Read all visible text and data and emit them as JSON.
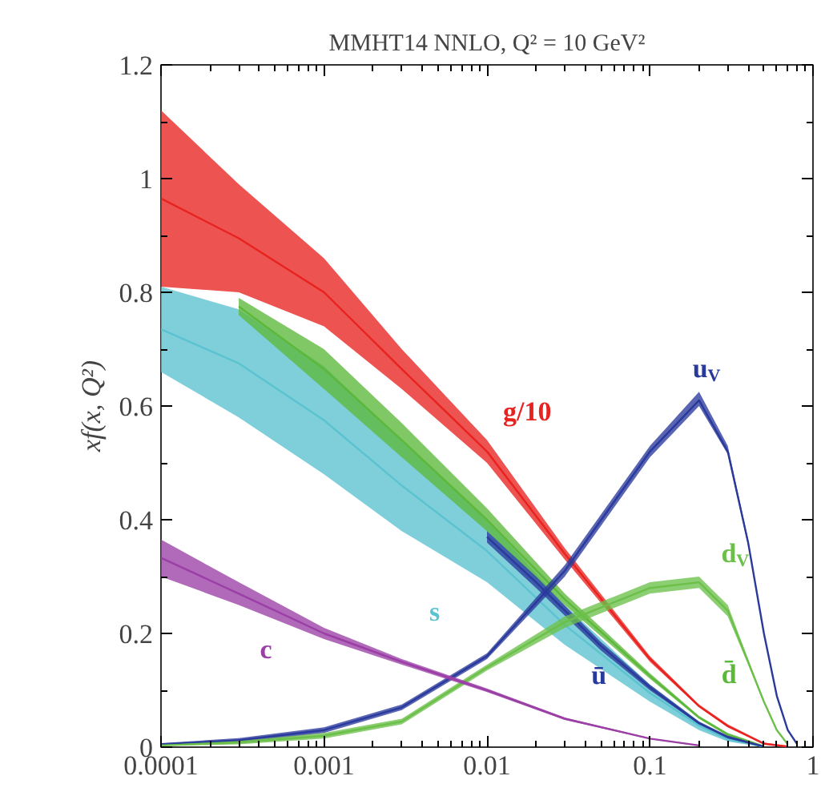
{
  "chart_data": {
    "type": "line",
    "title": "MMHT14 NNLO, Q² = 10 GeV²",
    "ylabel": "xf(x, Q²)",
    "log": "x",
    "grid": false,
    "xlim": [
      0.0001,
      1
    ],
    "xticks": [
      0.0001,
      0.001,
      0.01,
      0.1,
      1
    ],
    "ylim": [
      0,
      1.2
    ],
    "yticks": [
      0,
      0.2,
      0.4,
      0.6,
      0.8,
      1,
      1.2
    ],
    "series": [
      {
        "color": "#e8231f",
        "x": [
          0.0001,
          0.0003,
          0.001,
          0.003,
          0.01,
          0.03,
          0.1,
          0.2,
          0.3,
          0.5,
          0.7
        ],
        "values": [
          0.965,
          0.895,
          0.8,
          0.665,
          0.52,
          0.34,
          0.155,
          0.072,
          0.037,
          0.006,
          0.001
        ],
        "lower": [
          0.81,
          0.8,
          0.74,
          0.63,
          0.5,
          0.33,
          0.15,
          0.07,
          0.035,
          0.005,
          0.0
        ],
        "upper": [
          1.12,
          0.99,
          0.86,
          0.7,
          0.54,
          0.35,
          0.16,
          0.075,
          0.04,
          0.008,
          0.002
        ]
      },
      {
        "color": "#5bc2d0",
        "x": [
          0.0001,
          0.0003,
          0.001,
          0.003,
          0.01,
          0.03,
          0.1,
          0.2,
          0.3,
          0.5
        ],
        "values": [
          0.735,
          0.675,
          0.575,
          0.46,
          0.345,
          0.215,
          0.095,
          0.038,
          0.014,
          0.001
        ],
        "lower": [
          0.66,
          0.58,
          0.48,
          0.38,
          0.29,
          0.18,
          0.08,
          0.03,
          0.01,
          0.0
        ],
        "upper": [
          0.81,
          0.77,
          0.67,
          0.54,
          0.4,
          0.25,
          0.11,
          0.045,
          0.018,
          0.002
        ]
      },
      {
        "color": "#5cb83a",
        "x": [
          0.0003,
          0.001,
          0.003,
          0.01,
          0.03,
          0.1,
          0.2,
          0.3,
          0.5
        ],
        "values": [
          0.775,
          0.665,
          0.54,
          0.4,
          0.26,
          0.125,
          0.052,
          0.022,
          0.001
        ],
        "lower": [
          0.76,
          0.63,
          0.51,
          0.38,
          0.25,
          0.12,
          0.05,
          0.02,
          0.0
        ],
        "upper": [
          0.79,
          0.7,
          0.57,
          0.42,
          0.27,
          0.13,
          0.055,
          0.025,
          0.003
        ]
      },
      {
        "color": "#2a3a9c",
        "x": [
          0.01,
          0.02,
          0.05,
          0.1,
          0.2,
          0.3,
          0.5
        ],
        "values": [
          0.37,
          0.29,
          0.178,
          0.105,
          0.042,
          0.018,
          0.001
        ],
        "lower": [
          0.36,
          0.28,
          0.17,
          0.1,
          0.04,
          0.015,
          0.0
        ],
        "upper": [
          0.38,
          0.3,
          0.185,
          0.11,
          0.045,
          0.02,
          0.002
        ]
      },
      {
        "color": "#2a3a9c",
        "x": [
          0.0001,
          0.0003,
          0.001,
          0.003,
          0.01,
          0.03,
          0.1,
          0.2,
          0.3,
          0.4,
          0.5,
          0.6,
          0.7,
          0.8
        ],
        "values": [
          0.005,
          0.012,
          0.03,
          0.07,
          0.16,
          0.31,
          0.52,
          0.61,
          0.52,
          0.36,
          0.2,
          0.09,
          0.03,
          0.005
        ],
        "lower": [
          0.003,
          0.008,
          0.025,
          0.065,
          0.155,
          0.3,
          0.51,
          0.6,
          0.515,
          0.355,
          0.198,
          0.089,
          0.029,
          0.004
        ],
        "upper": [
          0.007,
          0.016,
          0.035,
          0.075,
          0.165,
          0.32,
          0.53,
          0.625,
          0.53,
          0.365,
          0.202,
          0.091,
          0.031,
          0.006
        ]
      },
      {
        "color": "#6cc04a",
        "x": [
          0.0001,
          0.0003,
          0.001,
          0.003,
          0.01,
          0.03,
          0.1,
          0.2,
          0.3,
          0.4,
          0.5,
          0.6,
          0.7
        ],
        "values": [
          0.003,
          0.008,
          0.02,
          0.045,
          0.14,
          0.22,
          0.28,
          0.29,
          0.24,
          0.15,
          0.08,
          0.03,
          0.005
        ],
        "lower": [
          0.002,
          0.005,
          0.015,
          0.04,
          0.135,
          0.21,
          0.27,
          0.28,
          0.23,
          0.145,
          0.078,
          0.029,
          0.004
        ],
        "upper": [
          0.004,
          0.011,
          0.025,
          0.05,
          0.145,
          0.23,
          0.29,
          0.3,
          0.25,
          0.155,
          0.082,
          0.031,
          0.006
        ]
      },
      {
        "color": "#9b3fa6",
        "x": [
          0.0001,
          0.0003,
          0.001,
          0.003,
          0.01,
          0.03,
          0.1,
          0.2
        ],
        "values": [
          0.333,
          0.27,
          0.2,
          0.15,
          0.1,
          0.05,
          0.015,
          0.003
        ],
        "lower": [
          0.3,
          0.25,
          0.19,
          0.145,
          0.097,
          0.048,
          0.014,
          0.002
        ],
        "upper": [
          0.365,
          0.29,
          0.21,
          0.155,
          0.103,
          0.052,
          0.016,
          0.004
        ]
      }
    ],
    "annotations": [
      {
        "text": "g/10",
        "x": 0.01,
        "y": 0.52
      },
      {
        "text": "s",
        "x": 0.01,
        "y": 0.345
      },
      {
        "text": "c",
        "x": 0.001,
        "y": 0.2
      },
      {
        "text": "ū",
        "x": 0.05,
        "y": 0.178
      },
      {
        "text": "d̄",
        "x": 0.2,
        "y": 0.052
      },
      {
        "text": "u$_{V}$",
        "x": 0.2,
        "y": 0.61
      },
      {
        "text": "d$_{V}$",
        "x": 0.3,
        "y": 0.24
      }
    ]
  }
}
